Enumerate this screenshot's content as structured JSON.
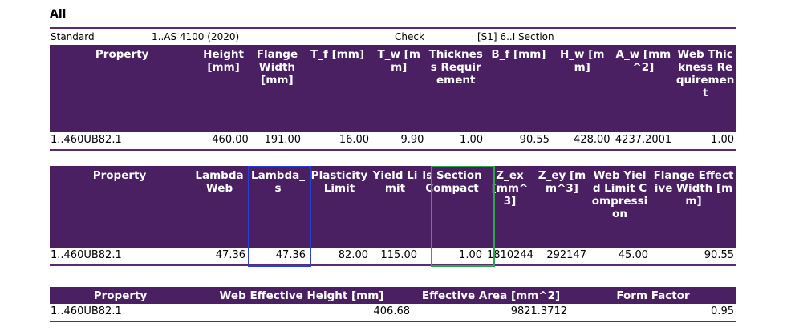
{
  "heading": "All",
  "standard_row": {
    "standard_label": "Standard",
    "standard_value": "1..AS 4100 (2020)",
    "check_label": "Check",
    "check_value": "[S1] 6..I Section"
  },
  "table1": {
    "headers": [
      "Property",
      "Height [mm]",
      "Flange Width [mm]",
      "T_f [mm]",
      "T_w [mm]",
      "Thickness Requirement",
      "B_f [mm]",
      "H_w [mm]",
      "A_w [mm^2]",
      "Web Thickness Requirement"
    ],
    "row": [
      "1..460UB82.1",
      "460.00",
      "191.00",
      "16.00",
      "9.90",
      "1.00",
      "90.55",
      "428.00",
      "4237.2001",
      "1.00"
    ]
  },
  "table2": {
    "headers": [
      "Property",
      "Lambda Web",
      "Lambda_s",
      "Plasticity Limit",
      "Yield Limit",
      "Is Section Compact",
      "Z_ex [mm^3]",
      "Z_ey [mm^3]",
      "Web Yield Limit Compression",
      "Flange Effective Width [mm]"
    ],
    "row": [
      "1..460UB82.1",
      "47.36",
      "47.36",
      "82.00",
      "115.00",
      "1.00",
      "1810244",
      "292147",
      "45.00",
      "90.55"
    ]
  },
  "table3": {
    "headers": [
      "Property",
      "Web Effective Height [mm]",
      "Effective Area [mm^2]",
      "Form Factor"
    ],
    "row": [
      "1..460UB82.1",
      "406.68",
      "9821.3712",
      "0.95"
    ]
  },
  "colors": {
    "header_bg": "#4a2063",
    "rule": "#5b2b6e",
    "highlight_blue": "#2a3fd6",
    "highlight_green": "#2ea64d"
  }
}
